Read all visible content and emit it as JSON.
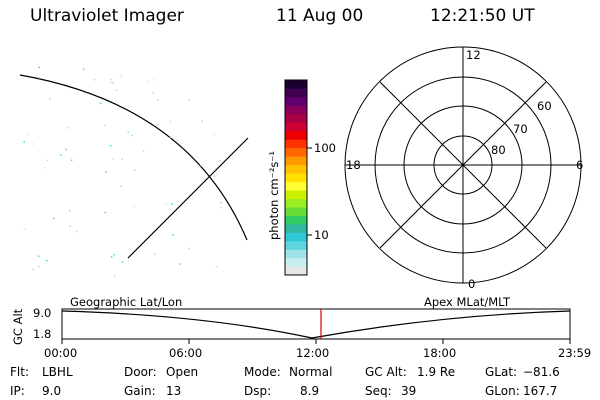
{
  "header": {
    "title": "Ultraviolet Imager",
    "date": "11 Aug 00",
    "time": "12:21:50 UT"
  },
  "colorbar": {
    "label": "photon cm⁻²s⁻¹",
    "ticks": [
      "100",
      "10"
    ],
    "colors": [
      "#e6e6e6",
      "#c8eef0",
      "#9fe2ea",
      "#5fd6e0",
      "#2ec8d6",
      "#2fb8a0",
      "#33cc66",
      "#66dd33",
      "#99ee22",
      "#ccf000",
      "#ffff33",
      "#ffe000",
      "#ffc000",
      "#ff9900",
      "#ff6600",
      "#ff3300",
      "#ee0000",
      "#cc0033",
      "#aa0044",
      "#88005a",
      "#600070",
      "#400050",
      "#1a0030"
    ]
  },
  "polar_plot": {
    "mlt_labels": {
      "top": "12",
      "left": "18",
      "right": "6",
      "bottom": "0"
    },
    "lat_labels": [
      "60",
      "70",
      "80"
    ]
  },
  "timeline": {
    "y_axis_label": "GC Alt",
    "y_ticks": [
      "9.0",
      "1.8"
    ],
    "left_caption": "Geographic Lat/Lon",
    "right_caption": "Apex MLat/MLT",
    "x_ticks": [
      "00:00",
      "06:00",
      "12:00",
      "18:00",
      "23:59"
    ],
    "marker_color": "#dd0000"
  },
  "info": {
    "flt": {
      "label": "Flt:",
      "value": "LBHL"
    },
    "door": {
      "label": "Door:",
      "value": "Open"
    },
    "mode": {
      "label": "Mode:",
      "value": "Normal"
    },
    "gcalt": {
      "label": "GC Alt:",
      "value": "1.9 Re"
    },
    "glat": {
      "label": "GLat:",
      "value": "−81.6"
    },
    "ip": {
      "label": "IP:",
      "value": "9.0"
    },
    "gain": {
      "label": "Gain:",
      "value": "13"
    },
    "dsp": {
      "label": "Dsp:",
      "value": "8.9"
    },
    "seq": {
      "label": "Seq:",
      "value": "39"
    },
    "glon": {
      "label": "GLon:",
      "value": "167.7"
    }
  }
}
